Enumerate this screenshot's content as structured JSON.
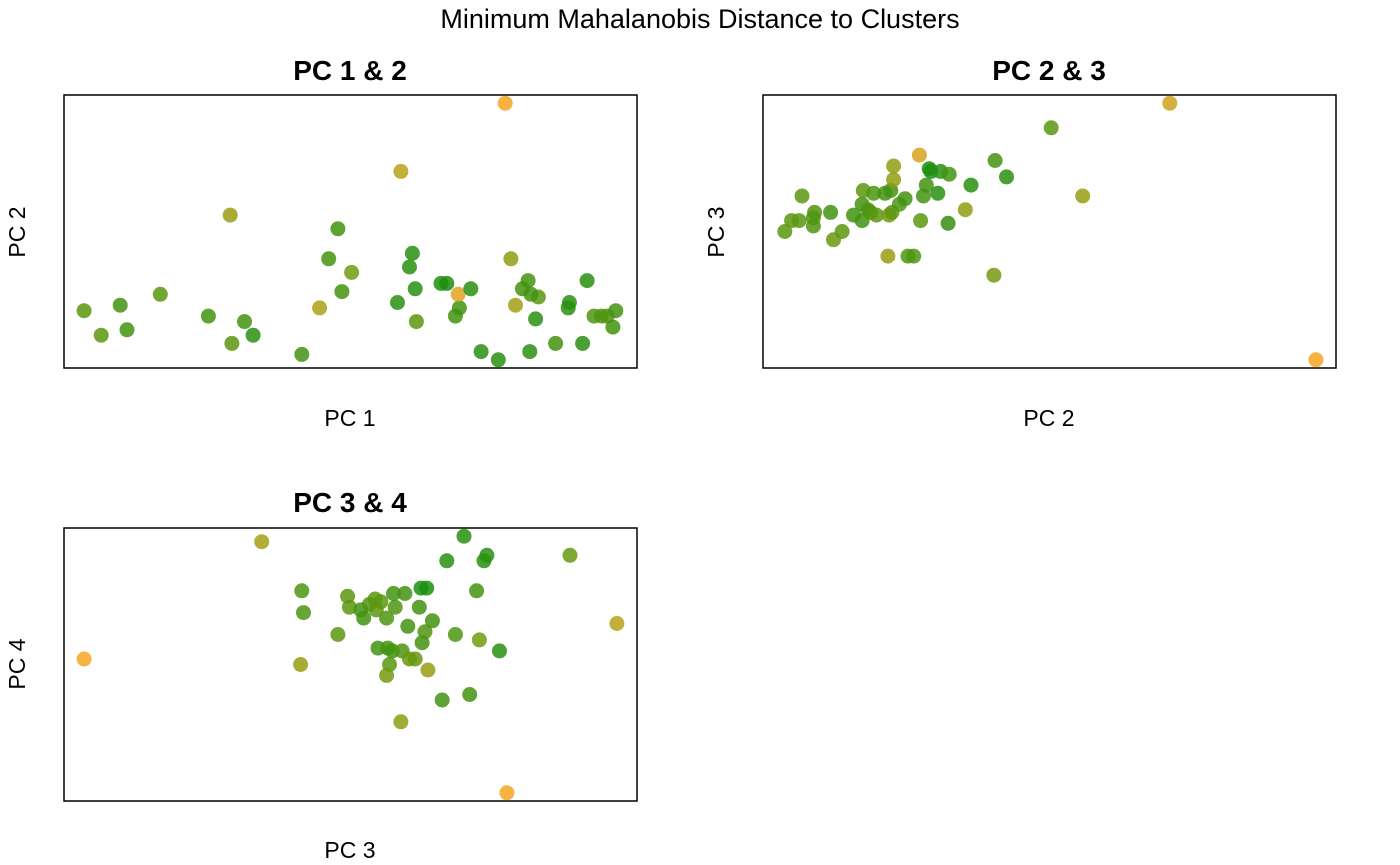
{
  "title": "Minimum Mahalanobis Distance to Clusters",
  "colors": {
    "near": "#0f8c0f",
    "mid": "#8f9d12",
    "far": "#f5a623"
  },
  "chart_data": [
    {
      "type": "scatter",
      "title": "PC 1 & 2",
      "xlabel": "PC 1",
      "ylabel": "PC 2",
      "xlim": [
        0,
        100
      ],
      "ylim": [
        0,
        100
      ],
      "axes": false,
      "points": [
        {
          "x": 3.5,
          "y": 21,
          "d": 0.3
        },
        {
          "x": 6.5,
          "y": 12,
          "d": 0.3
        },
        {
          "x": 9.8,
          "y": 23,
          "d": 0.2
        },
        {
          "x": 11.0,
          "y": 14,
          "d": 0.2
        },
        {
          "x": 16.8,
          "y": 27,
          "d": 0.3
        },
        {
          "x": 25.2,
          "y": 19,
          "d": 0.2
        },
        {
          "x": 29.0,
          "y": 56,
          "d": 0.55
        },
        {
          "x": 29.3,
          "y": 9,
          "d": 0.3
        },
        {
          "x": 31.5,
          "y": 17,
          "d": 0.2
        },
        {
          "x": 33.0,
          "y": 12,
          "d": 0.1
        },
        {
          "x": 41.5,
          "y": 5,
          "d": 0.2
        },
        {
          "x": 44.6,
          "y": 22,
          "d": 0.65
        },
        {
          "x": 46.2,
          "y": 40,
          "d": 0.2
        },
        {
          "x": 47.8,
          "y": 51,
          "d": 0.2
        },
        {
          "x": 48.5,
          "y": 28,
          "d": 0.2
        },
        {
          "x": 50.2,
          "y": 35,
          "d": 0.4
        },
        {
          "x": 58.8,
          "y": 72,
          "d": 0.7
        },
        {
          "x": 58.2,
          "y": 24,
          "d": 0.1
        },
        {
          "x": 60.3,
          "y": 37,
          "d": 0.1
        },
        {
          "x": 60.8,
          "y": 42,
          "d": 0.1
        },
        {
          "x": 61.3,
          "y": 29,
          "d": 0.1
        },
        {
          "x": 61.5,
          "y": 17,
          "d": 0.3
        },
        {
          "x": 65.8,
          "y": 31,
          "d": 0.05
        },
        {
          "x": 66.8,
          "y": 31,
          "d": 0.05
        },
        {
          "x": 68.3,
          "y": 19,
          "d": 0.2
        },
        {
          "x": 69.0,
          "y": 22,
          "d": 0.2
        },
        {
          "x": 68.8,
          "y": 27,
          "d": 0.9
        },
        {
          "x": 71.0,
          "y": 29,
          "d": 0.1
        },
        {
          "x": 72.8,
          "y": 6,
          "d": 0.1
        },
        {
          "x": 75.8,
          "y": 3,
          "d": 0.1
        },
        {
          "x": 77.0,
          "y": 97,
          "d": 1.0
        },
        {
          "x": 78.0,
          "y": 40,
          "d": 0.5
        },
        {
          "x": 78.8,
          "y": 23,
          "d": 0.6
        },
        {
          "x": 80.0,
          "y": 29,
          "d": 0.2
        },
        {
          "x": 81.0,
          "y": 32,
          "d": 0.2
        },
        {
          "x": 81.3,
          "y": 6,
          "d": 0.1
        },
        {
          "x": 82.8,
          "y": 26,
          "d": 0.3
        },
        {
          "x": 82.3,
          "y": 18,
          "d": 0.1
        },
        {
          "x": 81.5,
          "y": 27,
          "d": 0.2
        },
        {
          "x": 85.8,
          "y": 9,
          "d": 0.2
        },
        {
          "x": 88.0,
          "y": 22,
          "d": 0.1
        },
        {
          "x": 88.2,
          "y": 24,
          "d": 0.1
        },
        {
          "x": 90.5,
          "y": 9,
          "d": 0.1
        },
        {
          "x": 91.3,
          "y": 32,
          "d": 0.1
        },
        {
          "x": 92.5,
          "y": 19,
          "d": 0.25
        },
        {
          "x": 93.8,
          "y": 19,
          "d": 0.25
        },
        {
          "x": 94.8,
          "y": 19,
          "d": 0.25
        },
        {
          "x": 95.8,
          "y": 15,
          "d": 0.2
        },
        {
          "x": 96.3,
          "y": 21,
          "d": 0.2
        }
      ]
    },
    {
      "type": "scatter",
      "title": "PC 2 & 3",
      "xlabel": "PC 2",
      "ylabel": "PC 3",
      "xlim": [
        0,
        100
      ],
      "ylim": [
        0,
        100
      ],
      "axes": false,
      "points": [
        {
          "x": 3.8,
          "y": 50,
          "d": 0.3
        },
        {
          "x": 5.0,
          "y": 54,
          "d": 0.3
        },
        {
          "x": 6.3,
          "y": 54,
          "d": 0.3
        },
        {
          "x": 6.8,
          "y": 63,
          "d": 0.3
        },
        {
          "x": 8.8,
          "y": 55,
          "d": 0.25
        },
        {
          "x": 8.8,
          "y": 52,
          "d": 0.25
        },
        {
          "x": 9.0,
          "y": 57,
          "d": 0.25
        },
        {
          "x": 11.8,
          "y": 57,
          "d": 0.2
        },
        {
          "x": 12.3,
          "y": 47,
          "d": 0.35
        },
        {
          "x": 13.8,
          "y": 50,
          "d": 0.3
        },
        {
          "x": 15.8,
          "y": 56,
          "d": 0.2
        },
        {
          "x": 17.3,
          "y": 54,
          "d": 0.2
        },
        {
          "x": 17.3,
          "y": 60,
          "d": 0.2
        },
        {
          "x": 17.5,
          "y": 65,
          "d": 0.3
        },
        {
          "x": 18.3,
          "y": 58,
          "d": 0.25
        },
        {
          "x": 18.8,
          "y": 57,
          "d": 0.25
        },
        {
          "x": 19.3,
          "y": 64,
          "d": 0.25
        },
        {
          "x": 19.8,
          "y": 56,
          "d": 0.3
        },
        {
          "x": 21.3,
          "y": 64,
          "d": 0.2
        },
        {
          "x": 21.8,
          "y": 41,
          "d": 0.55
        },
        {
          "x": 22.0,
          "y": 56,
          "d": 0.4
        },
        {
          "x": 22.3,
          "y": 65,
          "d": 0.2
        },
        {
          "x": 22.5,
          "y": 57,
          "d": 0.3
        },
        {
          "x": 22.8,
          "y": 69,
          "d": 0.5
        },
        {
          "x": 22.8,
          "y": 74,
          "d": 0.5
        },
        {
          "x": 23.8,
          "y": 60,
          "d": 0.25
        },
        {
          "x": 24.8,
          "y": 62,
          "d": 0.2
        },
        {
          "x": 25.3,
          "y": 41,
          "d": 0.25
        },
        {
          "x": 26.3,
          "y": 41,
          "d": 0.25
        },
        {
          "x": 27.3,
          "y": 78,
          "d": 0.85
        },
        {
          "x": 27.5,
          "y": 54,
          "d": 0.3
        },
        {
          "x": 28.0,
          "y": 63,
          "d": 0.2
        },
        {
          "x": 28.5,
          "y": 67,
          "d": 0.2
        },
        {
          "x": 29.0,
          "y": 73,
          "d": 0.05
        },
        {
          "x": 29.3,
          "y": 72,
          "d": 0.05
        },
        {
          "x": 30.5,
          "y": 64,
          "d": 0.1
        },
        {
          "x": 31.0,
          "y": 72,
          "d": 0.1
        },
        {
          "x": 32.3,
          "y": 53,
          "d": 0.15
        },
        {
          "x": 32.5,
          "y": 71,
          "d": 0.2
        },
        {
          "x": 35.3,
          "y": 58,
          "d": 0.5
        },
        {
          "x": 36.3,
          "y": 67,
          "d": 0.1
        },
        {
          "x": 40.3,
          "y": 34,
          "d": 0.4
        },
        {
          "x": 40.5,
          "y": 76,
          "d": 0.2
        },
        {
          "x": 42.5,
          "y": 70,
          "d": 0.1
        },
        {
          "x": 50.3,
          "y": 88,
          "d": 0.3
        },
        {
          "x": 55.8,
          "y": 63,
          "d": 0.55
        },
        {
          "x": 71.0,
          "y": 97,
          "d": 0.8
        },
        {
          "x": 96.5,
          "y": 3,
          "d": 1.0
        }
      ]
    },
    {
      "type": "scatter",
      "title": "PC 3 & 4",
      "xlabel": "PC 3",
      "ylabel": "PC 4",
      "xlim": [
        0,
        100
      ],
      "ylim": [
        0,
        100
      ],
      "axes": false,
      "points": [
        {
          "x": 3.5,
          "y": 52,
          "d": 1.0
        },
        {
          "x": 34.5,
          "y": 95,
          "d": 0.6
        },
        {
          "x": 41.5,
          "y": 77,
          "d": 0.25
        },
        {
          "x": 41.8,
          "y": 69,
          "d": 0.25
        },
        {
          "x": 41.3,
          "y": 50,
          "d": 0.55
        },
        {
          "x": 47.8,
          "y": 61,
          "d": 0.3
        },
        {
          "x": 49.5,
          "y": 75,
          "d": 0.3
        },
        {
          "x": 49.8,
          "y": 71,
          "d": 0.3
        },
        {
          "x": 51.8,
          "y": 70,
          "d": 0.2
        },
        {
          "x": 52.3,
          "y": 67,
          "d": 0.2
        },
        {
          "x": 53.3,
          "y": 72,
          "d": 0.25
        },
        {
          "x": 54.3,
          "y": 74,
          "d": 0.3
        },
        {
          "x": 54.5,
          "y": 70,
          "d": 0.3
        },
        {
          "x": 54.8,
          "y": 56,
          "d": 0.2
        },
        {
          "x": 55.3,
          "y": 73,
          "d": 0.3
        },
        {
          "x": 56.3,
          "y": 67,
          "d": 0.25
        },
        {
          "x": 56.8,
          "y": 50,
          "d": 0.3
        },
        {
          "x": 56.3,
          "y": 46,
          "d": 0.4
        },
        {
          "x": 56.5,
          "y": 56,
          "d": 0.2
        },
        {
          "x": 57.3,
          "y": 55,
          "d": 0.2
        },
        {
          "x": 57.8,
          "y": 71,
          "d": 0.25
        },
        {
          "x": 57.5,
          "y": 76,
          "d": 0.2
        },
        {
          "x": 58.8,
          "y": 29,
          "d": 0.5
        },
        {
          "x": 59.0,
          "y": 55,
          "d": 0.25
        },
        {
          "x": 59.5,
          "y": 76,
          "d": 0.2
        },
        {
          "x": 60.0,
          "y": 64,
          "d": 0.2
        },
        {
          "x": 60.3,
          "y": 52,
          "d": 0.35
        },
        {
          "x": 61.3,
          "y": 52,
          "d": 0.35
        },
        {
          "x": 62.0,
          "y": 71,
          "d": 0.2
        },
        {
          "x": 62.5,
          "y": 58,
          "d": 0.2
        },
        {
          "x": 62.3,
          "y": 78,
          "d": 0.05
        },
        {
          "x": 63.3,
          "y": 78,
          "d": 0.05
        },
        {
          "x": 63.5,
          "y": 48,
          "d": 0.55
        },
        {
          "x": 63.0,
          "y": 62,
          "d": 0.25
        },
        {
          "x": 64.3,
          "y": 66,
          "d": 0.2
        },
        {
          "x": 66.0,
          "y": 37,
          "d": 0.2
        },
        {
          "x": 66.8,
          "y": 88,
          "d": 0.1
        },
        {
          "x": 68.3,
          "y": 61,
          "d": 0.25
        },
        {
          "x": 69.8,
          "y": 97,
          "d": 0.1
        },
        {
          "x": 70.8,
          "y": 39,
          "d": 0.2
        },
        {
          "x": 72.0,
          "y": 77,
          "d": 0.2
        },
        {
          "x": 72.5,
          "y": 59,
          "d": 0.4
        },
        {
          "x": 73.3,
          "y": 88,
          "d": 0.1
        },
        {
          "x": 73.8,
          "y": 90,
          "d": 0.1
        },
        {
          "x": 76.0,
          "y": 55,
          "d": 0.1
        },
        {
          "x": 77.3,
          "y": 3,
          "d": 1.0
        },
        {
          "x": 88.3,
          "y": 90,
          "d": 0.35
        },
        {
          "x": 96.5,
          "y": 65,
          "d": 0.7
        }
      ]
    }
  ]
}
